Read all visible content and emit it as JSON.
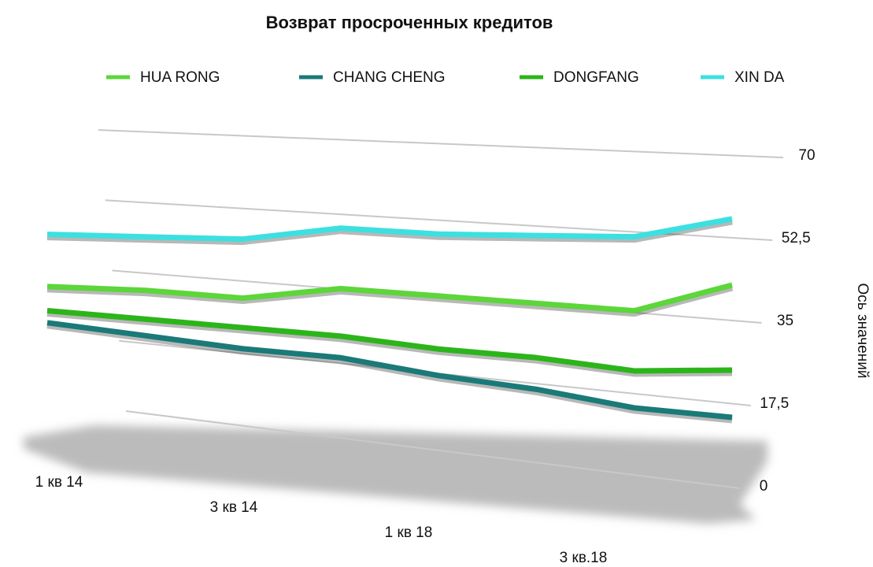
{
  "chart_data": {
    "type": "line",
    "title": "Возврат просроченных кредитов",
    "y_label": "Ось значений",
    "categories": [
      "1 кв 14",
      null,
      "3 кв 14",
      null,
      "1 кв 18",
      null,
      "3 кв.18",
      null
    ],
    "series": [
      {
        "name": "HUA RONG",
        "color": "#5cd63a",
        "values": [
          31,
          32,
          32,
          36,
          36,
          36,
          36,
          43
        ]
      },
      {
        "name": "CHANG CHENG",
        "color": "#1a7a78",
        "values": [
          22,
          21,
          20,
          20,
          18,
          17,
          15,
          15
        ]
      },
      {
        "name": "DONGFANG",
        "color": "#2cb51a",
        "values": [
          25,
          25,
          25,
          25,
          24,
          24,
          23,
          25
        ]
      },
      {
        "name": "XIN DA",
        "color": "#3de0e0",
        "values": [
          44,
          45,
          46,
          50,
          50,
          51,
          52,
          57
        ]
      }
    ],
    "ylim": [
      0,
      70
    ],
    "yticks": [
      0,
      {
        "value": 17.5,
        "label": "17,5"
      },
      35,
      {
        "value": 52.5,
        "label": "52,5"
      },
      70
    ],
    "grid": true,
    "legend": "top"
  }
}
